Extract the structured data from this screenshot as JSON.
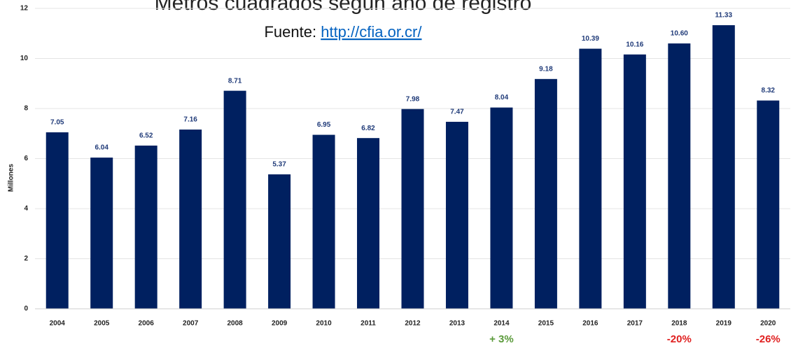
{
  "chart_data": {
    "type": "bar",
    "title": "Metros cuadrados según año de registro",
    "subtitle_prefix": "Fuente:",
    "subtitle_link": "http://cfia.or.cr/",
    "y_label": "Millones",
    "categories": [
      "2004",
      "2005",
      "2006",
      "2007",
      "2008",
      "2009",
      "2010",
      "2011",
      "2012",
      "2013",
      "2014",
      "2015",
      "2016",
      "2017",
      "2018",
      "2019",
      "2020"
    ],
    "values": [
      7.05,
      6.04,
      6.52,
      7.16,
      8.71,
      5.37,
      6.95,
      6.82,
      7.98,
      7.47,
      8.04,
      9.18,
      10.39,
      10.16,
      10.6,
      11.33,
      8.32
    ],
    "value_labels": [
      "7.05",
      "6.04",
      "6.52",
      "7.16",
      "8.71",
      "5.37",
      "6.95",
      "6.82",
      "7.98",
      "7.47",
      "8.04",
      "9.18",
      "10.39",
      "10.16",
      "10.60",
      "11.33",
      "8.32"
    ],
    "color": "#002060",
    "ylim": [
      0,
      12
    ],
    "yticks": [
      0,
      2,
      4,
      6,
      8,
      10,
      12
    ],
    "grid": true,
    "annotations": [
      {
        "label": "+ 3%",
        "x": "2014",
        "color": "#5a9a3a"
      },
      {
        "label": "-20%",
        "x": "2018",
        "color": "#e02020"
      },
      {
        "label": "-26%",
        "x": "2020",
        "color": "#e02020"
      }
    ]
  }
}
